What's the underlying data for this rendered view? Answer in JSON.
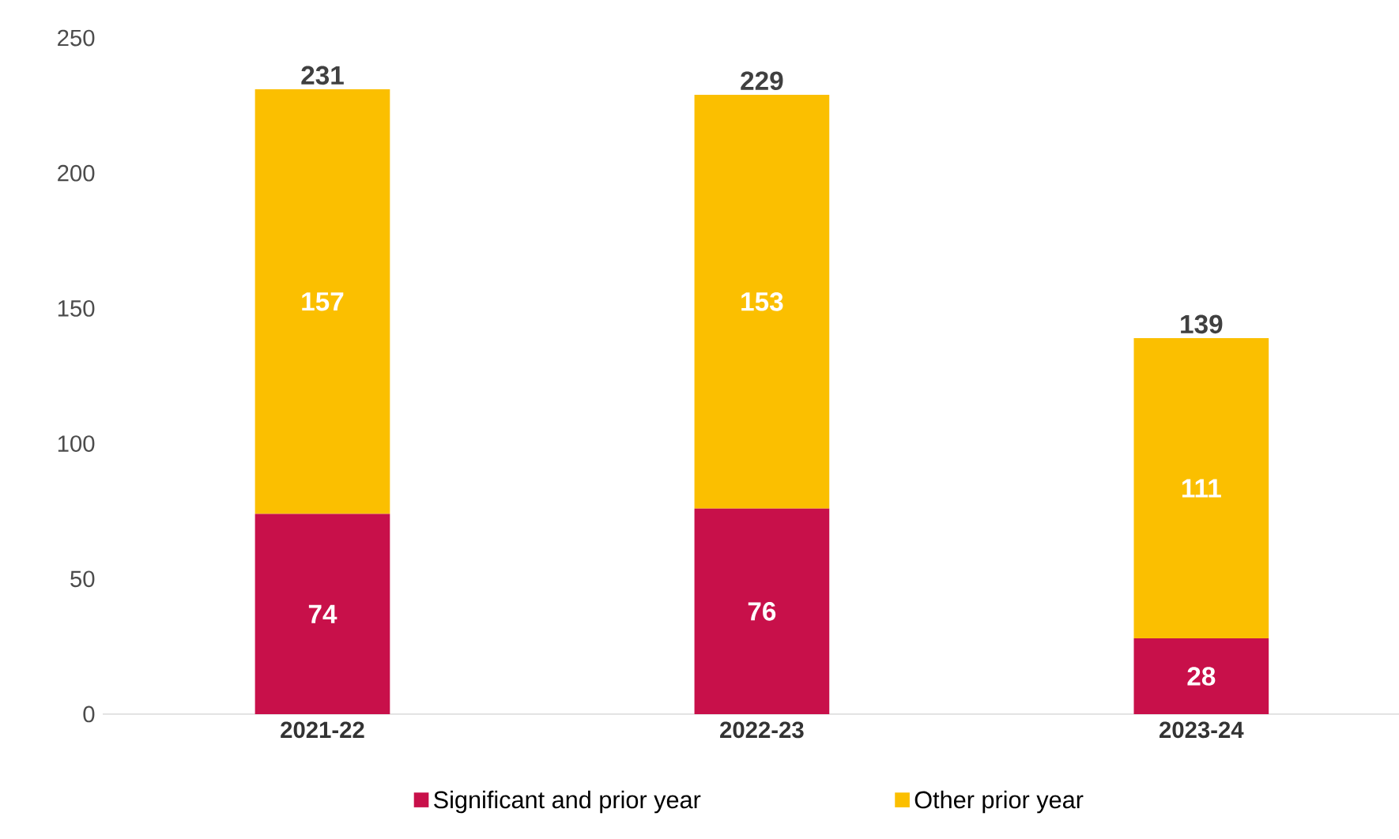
{
  "chart_data": {
    "type": "bar",
    "stacked": true,
    "categories": [
      "2021-22",
      "2022-23",
      "2023-24"
    ],
    "series": [
      {
        "name": "Significant and prior year",
        "color": "#c8104a",
        "values": [
          74,
          76,
          28
        ]
      },
      {
        "name": "Other prior year",
        "color": "#fbbf00",
        "values": [
          157,
          153,
          111
        ]
      }
    ],
    "ylim": [
      0,
      250
    ],
    "yticks": [
      0,
      50,
      100,
      150,
      200,
      250
    ],
    "data_labels": true,
    "totals": [
      "231",
      "229",
      "139"
    ],
    "legend": "bottom"
  }
}
